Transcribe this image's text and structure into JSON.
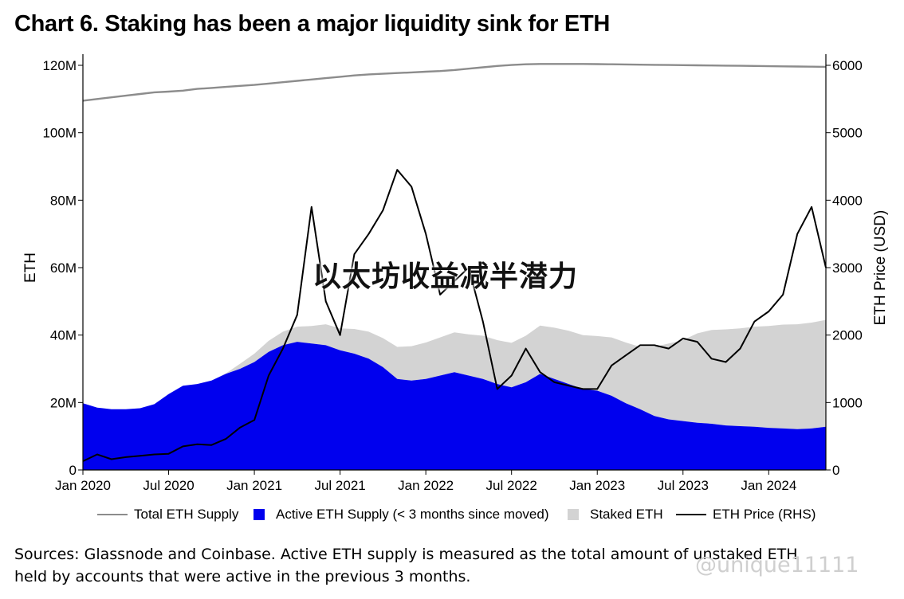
{
  "title": "Chart 6. Staking has been a major liquidity sink for ETH",
  "overlay_text": "以太坊收益减半潜力",
  "sources": "Sources: Glassnode and Coinbase. Active ETH supply is measured as the total amount of unstaked ETH held by accounts that were active in the previous 3 months.",
  "watermark": "@unique11111",
  "colors": {
    "total_supply": "#8c8c8c",
    "active_supply": "#0000ee",
    "staked": "#d3d3d3",
    "price": "#000000"
  },
  "legend": [
    {
      "label": "Total ETH Supply",
      "kind": "line",
      "color": "#8c8c8c"
    },
    {
      "label": "Active ETH Supply (< 3 months since moved)",
      "kind": "box",
      "color": "#0000ee"
    },
    {
      "label": "Staked ETH",
      "kind": "box",
      "color": "#d3d3d3"
    },
    {
      "label": "ETH Price (RHS)",
      "kind": "line",
      "color": "#000000"
    }
  ],
  "chart_data": {
    "type": "area",
    "title": "Chart 6. Staking has been a major liquidity sink for ETH",
    "ylabel": "ETH",
    "y2label": "ETH Price (USD)",
    "ylim": [
      0,
      120000000
    ],
    "y2lim": [
      0,
      6000
    ],
    "yticks": [
      "0",
      "20M",
      "40M",
      "60M",
      "80M",
      "100M",
      "120M"
    ],
    "yticks_values": [
      0,
      20000000,
      40000000,
      60000000,
      80000000,
      100000000,
      120000000
    ],
    "y2ticks": [
      "0",
      "1000",
      "2000",
      "3000",
      "4000",
      "5000",
      "6000"
    ],
    "y2ticks_values": [
      0,
      1000,
      2000,
      3000,
      4000,
      5000,
      6000
    ],
    "xticks": [
      "Jan 2020",
      "Jul 2020",
      "Jan 2021",
      "Jul 2021",
      "Jan 2022",
      "Jul 2022",
      "Jan 2023",
      "Jul 2023",
      "Jan 2024"
    ],
    "xticks_values": [
      "2020-01",
      "2020-07",
      "2021-01",
      "2021-07",
      "2022-01",
      "2022-07",
      "2023-01",
      "2023-07",
      "2024-01"
    ],
    "xlim": [
      "2020-01",
      "2024-05"
    ],
    "legend_position": "bottom",
    "grid": false,
    "x": [
      "2020-01",
      "2020-02",
      "2020-03",
      "2020-04",
      "2020-05",
      "2020-06",
      "2020-07",
      "2020-08",
      "2020-09",
      "2020-10",
      "2020-11",
      "2020-12",
      "2021-01",
      "2021-02",
      "2021-03",
      "2021-04",
      "2021-05",
      "2021-06",
      "2021-07",
      "2021-08",
      "2021-09",
      "2021-10",
      "2021-11",
      "2021-12",
      "2022-01",
      "2022-02",
      "2022-03",
      "2022-04",
      "2022-05",
      "2022-06",
      "2022-07",
      "2022-08",
      "2022-09",
      "2022-10",
      "2022-11",
      "2022-12",
      "2023-01",
      "2023-02",
      "2023-03",
      "2023-04",
      "2023-05",
      "2023-06",
      "2023-07",
      "2023-08",
      "2023-09",
      "2023-10",
      "2023-11",
      "2023-12",
      "2024-01",
      "2024-02",
      "2024-03",
      "2024-04",
      "2024-05"
    ],
    "series": [
      {
        "name": "Total ETH Supply",
        "kind": "line",
        "axis": "left",
        "values": [
          109500000,
          110000000,
          110500000,
          111000000,
          111500000,
          112000000,
          112200000,
          112500000,
          113000000,
          113300000,
          113600000,
          113900000,
          114200000,
          114600000,
          115000000,
          115400000,
          115800000,
          116200000,
          116600000,
          117000000,
          117300000,
          117500000,
          117700000,
          117900000,
          118100000,
          118300000,
          118600000,
          119000000,
          119400000,
          119800000,
          120100000,
          120300000,
          120400000,
          120400000,
          120400000,
          120400000,
          120350000,
          120300000,
          120250000,
          120200000,
          120150000,
          120100000,
          120050000,
          120000000,
          119950000,
          119900000,
          119850000,
          119800000,
          119750000,
          119700000,
          119650000,
          119600000,
          119550000
        ]
      },
      {
        "name": "Staked ETH",
        "kind": "area",
        "axis": "left",
        "values": [
          0,
          0,
          0,
          0,
          0,
          0,
          0,
          0,
          0,
          0,
          100000,
          1500000,
          2500000,
          3300000,
          4000000,
          4500000,
          5200000,
          6200000,
          6500000,
          7300000,
          8000000,
          8600000,
          9500000,
          10200000,
          10800000,
          11300000,
          11800000,
          12200000,
          12800000,
          13000000,
          13200000,
          13800000,
          14300000,
          15200000,
          15800000,
          16000000,
          16200000,
          17300000,
          18000000,
          18500000,
          20500000,
          22500000,
          24000000,
          26500000,
          27800000,
          28500000,
          29000000,
          29700000,
          30200000,
          30800000,
          31100000,
          31400000,
          31700000
        ]
      },
      {
        "name": "Active ETH Supply (< 3 months since moved)",
        "kind": "area",
        "axis": "left",
        "values": [
          19800000,
          18500000,
          18000000,
          18000000,
          18300000,
          19500000,
          22500000,
          25000000,
          25500000,
          26500000,
          28500000,
          30000000,
          32000000,
          35000000,
          37000000,
          38000000,
          37500000,
          37000000,
          35500000,
          34500000,
          33000000,
          30500000,
          27000000,
          26500000,
          27000000,
          28000000,
          29000000,
          28000000,
          27000000,
          25500000,
          24500000,
          26000000,
          28500000,
          27000000,
          25500000,
          24000000,
          23500000,
          22000000,
          19800000,
          18000000,
          16000000,
          15000000,
          14500000,
          14000000,
          13700000,
          13200000,
          13000000,
          12800000,
          12500000,
          12300000,
          12100000,
          12300000,
          12800000
        ]
      },
      {
        "name": "ETH Price (RHS)",
        "kind": "line",
        "axis": "right",
        "values": [
          130,
          230,
          160,
          190,
          210,
          230,
          240,
          350,
          380,
          370,
          460,
          630,
          740,
          1400,
          1800,
          2300,
          3900,
          2500,
          2000,
          3200,
          3500,
          3850,
          4450,
          4200,
          3500,
          2600,
          2800,
          3000,
          2200,
          1200,
          1400,
          1800,
          1450,
          1300,
          1250,
          1200,
          1200,
          1550,
          1700,
          1850,
          1850,
          1800,
          1950,
          1900,
          1650,
          1600,
          1800,
          2200,
          2350,
          2600,
          3500,
          3900,
          3000
        ]
      }
    ]
  }
}
